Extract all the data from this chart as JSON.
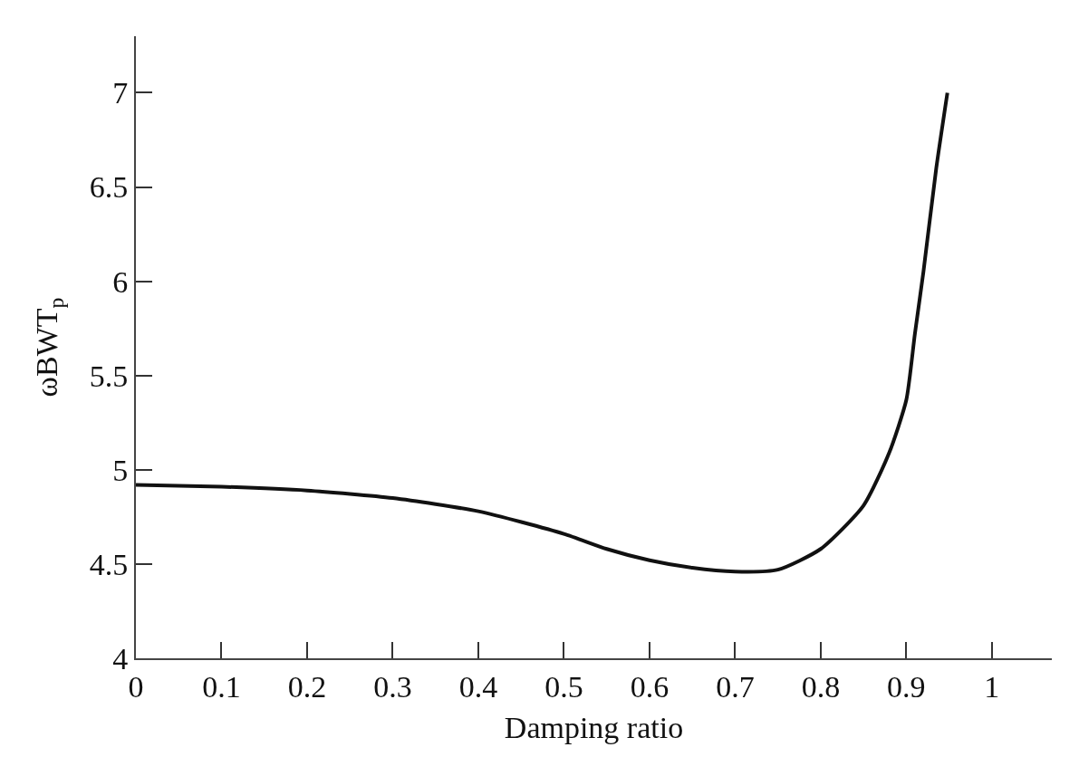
{
  "chart_data": {
    "type": "line",
    "xlabel": "Damping ratio",
    "ylabel": "ωBWT$_{p}$",
    "x": [
      0,
      0.1,
      0.2,
      0.3,
      0.4,
      0.5,
      0.55,
      0.6,
      0.65,
      0.7,
      0.75,
      0.8,
      0.85,
      0.88,
      0.9,
      0.91,
      0.92,
      0.935,
      0.948
    ],
    "series": [
      {
        "color": "#111111",
        "values": [
          4.92,
          4.91,
          4.89,
          4.85,
          4.78,
          4.66,
          4.58,
          4.52,
          4.48,
          4.46,
          4.47,
          4.58,
          4.81,
          5.09,
          5.37,
          5.72,
          6.05,
          6.6,
          7.0
        ]
      }
    ],
    "xlim": [
      0,
      1.07
    ],
    "xticks": [
      0,
      0.1,
      0.2,
      0.3,
      0.4,
      0.5,
      0.6,
      0.7,
      0.8,
      0.9,
      1
    ],
    "ylim": [
      4,
      7.3
    ],
    "yticks": [
      4,
      4.5,
      5,
      5.5,
      6,
      6.5,
      7
    ],
    "legend": false,
    "marker": "none",
    "line_style": "solid"
  }
}
